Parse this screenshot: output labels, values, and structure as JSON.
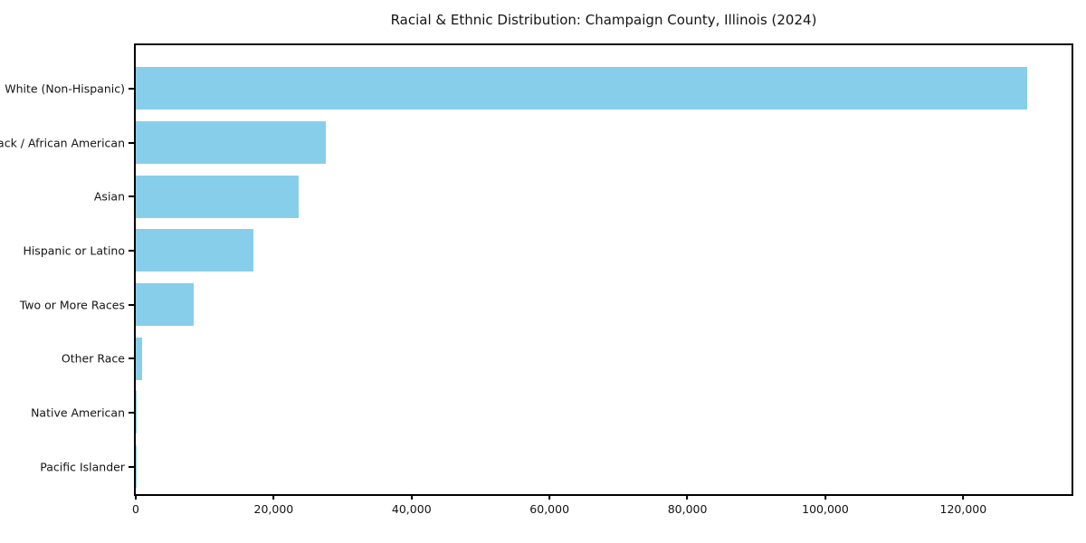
{
  "title": "Racial & Ethnic Distribution: Champaign County, Illinois (2024)",
  "colors": {
    "bar": "#87CEEB",
    "spine": "#000000",
    "text": "#141414",
    "background": "#ffffff"
  },
  "chart_data": {
    "type": "bar",
    "orientation": "horizontal",
    "title": "Racial & Ethnic Distribution: Champaign County, Illinois (2024)",
    "xlabel": "",
    "ylabel": "",
    "categories": [
      "White (Non-Hispanic)",
      "Black / African American",
      "Asian",
      "Hispanic or Latino",
      "Two or More Races",
      "Other Race",
      "Native American",
      "Pacific Islander"
    ],
    "values": [
      129300,
      27600,
      23600,
      17100,
      8400,
      950,
      150,
      50
    ],
    "xlim": [
      0,
      135700
    ],
    "xticks": [
      0,
      20000,
      40000,
      60000,
      80000,
      100000,
      120000
    ],
    "xtick_labels": [
      "0",
      "20,000",
      "40,000",
      "60,000",
      "80,000",
      "100,000",
      "120,000"
    ],
    "grid": false,
    "legend": null,
    "bar_color": "#87CEEB"
  }
}
